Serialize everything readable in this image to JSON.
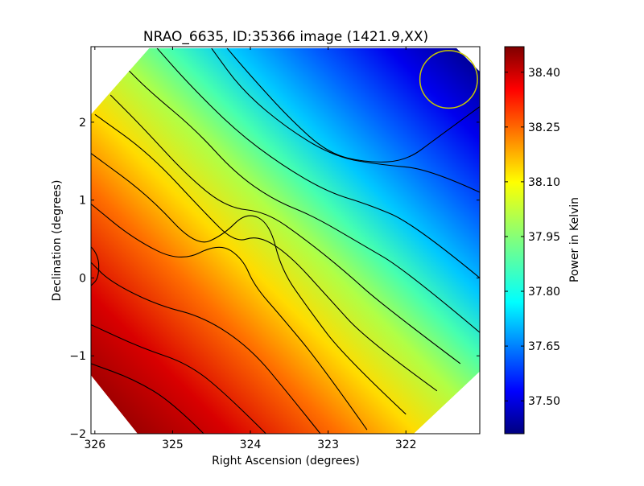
{
  "chart_data": {
    "type": "heatmap",
    "title": "NRAO_6635, ID:35366 image (1421.9,XX)",
    "xlabel": "Right Ascension (degrees)",
    "ylabel": "Declination (degrees)",
    "xlim": [
      326.05,
      321.05
    ],
    "ylim": [
      -2.0,
      2.97
    ],
    "x_ticks": [
      326,
      325,
      324,
      323,
      322
    ],
    "x_tick_labels": [
      "326",
      "325",
      "324",
      "323",
      "322"
    ],
    "y_ticks": [
      2,
      1,
      0,
      -1,
      -2
    ],
    "y_tick_labels": [
      "2",
      "1",
      "0",
      "−1",
      "−2"
    ],
    "colorbar": {
      "label": "Power in Kelvin",
      "range": [
        37.41,
        38.47
      ],
      "ticks": [
        38.4,
        38.25,
        38.1,
        37.95,
        37.8,
        37.65,
        37.5
      ],
      "tick_labels": [
        "38.40",
        "38.25",
        "38.10",
        "37.95",
        "37.80",
        "37.65",
        "37.50"
      ],
      "colormap": "jet"
    },
    "beam_circle": {
      "ra": 321.45,
      "dec": 2.55,
      "radius_deg": 0.37,
      "color": "#c8c800"
    },
    "field_polygon_ra_dec": [
      [
        325.3,
        2.95
      ],
      [
        321.35,
        2.95
      ],
      [
        321.05,
        2.65
      ],
      [
        321.05,
        -1.2
      ],
      [
        321.9,
        -2.0
      ],
      [
        325.45,
        -2.0
      ],
      [
        326.05,
        -1.25
      ],
      [
        326.05,
        2.1
      ]
    ],
    "contours_ra_dec": [
      [
        [
          321.05,
          2.2
        ],
        [
          321.6,
          1.8
        ],
        [
          322.0,
          1.5
        ],
        [
          322.5,
          1.48
        ],
        [
          323.0,
          1.6
        ],
        [
          323.5,
          2.05
        ],
        [
          324.0,
          2.6
        ],
        [
          324.3,
          2.95
        ]
      ],
      [
        [
          321.05,
          1.1
        ],
        [
          321.7,
          1.4
        ],
        [
          322.3,
          1.45
        ],
        [
          322.9,
          1.55
        ],
        [
          323.5,
          1.9
        ],
        [
          324.1,
          2.4
        ],
        [
          324.5,
          2.95
        ]
      ],
      [
        [
          321.05,
          0.0
        ],
        [
          321.9,
          0.7
        ],
        [
          322.5,
          0.95
        ],
        [
          323.0,
          1.1
        ],
        [
          323.6,
          1.45
        ],
        [
          324.2,
          1.9
        ],
        [
          324.8,
          2.5
        ],
        [
          325.2,
          2.95
        ]
      ],
      [
        [
          321.05,
          -0.7
        ],
        [
          322.0,
          0.1
        ],
        [
          322.6,
          0.45
        ],
        [
          323.2,
          0.8
        ],
        [
          323.7,
          1.0
        ],
        [
          324.2,
          1.35
        ],
        [
          324.7,
          1.9
        ],
        [
          325.3,
          2.4
        ],
        [
          325.6,
          2.7
        ]
      ],
      [
        [
          321.3,
          -1.1
        ],
        [
          322.3,
          -0.35
        ],
        [
          322.8,
          0.1
        ],
        [
          323.3,
          0.5
        ],
        [
          323.8,
          0.85
        ],
        [
          324.3,
          0.9
        ],
        [
          324.8,
          1.3
        ],
        [
          325.4,
          1.95
        ],
        [
          325.8,
          2.35
        ]
      ],
      [
        [
          321.6,
          -1.45
        ],
        [
          322.5,
          -0.8
        ],
        [
          323.0,
          -0.25
        ],
        [
          323.5,
          0.3
        ],
        [
          323.9,
          0.55
        ],
        [
          324.2,
          0.45
        ],
        [
          324.6,
          0.85
        ],
        [
          325.3,
          1.6
        ],
        [
          326.0,
          2.1
        ]
      ],
      [
        [
          322.0,
          -1.75
        ],
        [
          322.8,
          -1.0
        ],
        [
          323.25,
          -0.4
        ],
        [
          323.6,
          0.1
        ],
        [
          323.75,
          0.7
        ],
        [
          324.05,
          0.85
        ],
        [
          324.35,
          0.55
        ],
        [
          324.7,
          0.4
        ],
        [
          325.3,
          1.05
        ],
        [
          326.05,
          1.6
        ]
      ],
      [
        [
          322.5,
          -1.95
        ],
        [
          323.1,
          -1.1
        ],
        [
          323.6,
          -0.5
        ],
        [
          323.95,
          -0.1
        ],
        [
          324.1,
          0.25
        ],
        [
          324.4,
          0.45
        ],
        [
          324.9,
          0.2
        ],
        [
          325.5,
          0.5
        ],
        [
          326.05,
          0.95
        ]
      ],
      [
        [
          323.1,
          -2.0
        ],
        [
          323.5,
          -1.5
        ],
        [
          324.0,
          -0.9
        ],
        [
          324.6,
          -0.5
        ],
        [
          325.2,
          -0.35
        ],
        [
          325.8,
          -0.05
        ],
        [
          326.05,
          0.2
        ]
      ],
      [
        [
          323.8,
          -2.0
        ],
        [
          324.3,
          -1.5
        ],
        [
          324.8,
          -1.1
        ],
        [
          325.4,
          -0.9
        ],
        [
          326.05,
          -0.6
        ]
      ],
      [
        [
          324.6,
          -2.0
        ],
        [
          325.0,
          -1.6
        ],
        [
          325.5,
          -1.3
        ],
        [
          326.05,
          -1.1
        ]
      ],
      [
        [
          326.05,
          0.4
        ],
        [
          325.95,
          0.3
        ],
        [
          325.95,
          0.0
        ],
        [
          326.05,
          -0.1
        ]
      ]
    ]
  }
}
